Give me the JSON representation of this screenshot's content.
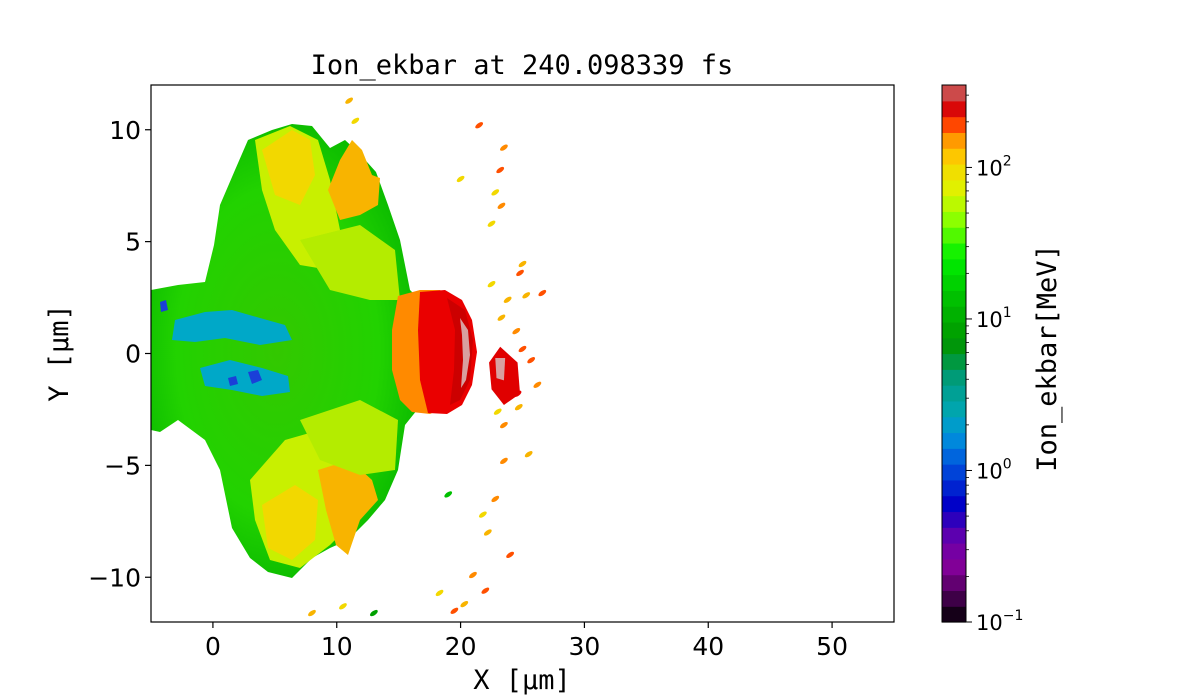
{
  "chart_data": {
    "type": "heatmap",
    "title": "Ion_ekbar at 240.098339 fs",
    "xlabel": "X  [μm]",
    "ylabel": "Y  [μm]",
    "xlim": [
      -5,
      55
    ],
    "ylim": [
      -12,
      12
    ],
    "x_ticks": [
      0,
      10,
      20,
      30,
      40,
      50
    ],
    "x_tick_labels": [
      "0",
      "10",
      "20",
      "30",
      "40",
      "50"
    ],
    "y_ticks": [
      10,
      5,
      0,
      -5,
      -10
    ],
    "y_tick_labels": [
      "10",
      "5",
      "0",
      "−5",
      "−10"
    ],
    "colorbar": {
      "label": "Ion_ekbar[MeV]",
      "scale": "log",
      "range": [
        0.1,
        350
      ],
      "ticks": [
        0.1,
        1,
        10,
        100
      ],
      "tick_labels": [
        {
          "base": "10",
          "exp": "−1"
        },
        {
          "base": "10",
          "exp": "0"
        },
        {
          "base": "10",
          "exp": "1"
        },
        {
          "base": "10",
          "exp": "2"
        }
      ],
      "levels": 34,
      "colormap": "nipy_spectral"
    },
    "field_regions": [
      {
        "x": [
          -5,
          27
        ],
        "y": [
          -11.5,
          11.5
        ],
        "value_MeV": 8,
        "note": "bulk plasma cloud"
      },
      {
        "x": [
          -5,
          6
        ],
        "y": [
          -2,
          2
        ],
        "value_MeV": 1.2,
        "note": "low energy core"
      },
      {
        "x": [
          6,
          16
        ],
        "y": [
          4,
          10
        ],
        "value_MeV": 35,
        "note": "upper lobe"
      },
      {
        "x": [
          6,
          16
        ],
        "y": [
          -10,
          -4
        ],
        "value_MeV": 35,
        "note": "lower lobe"
      },
      {
        "x": [
          17,
          22
        ],
        "y": [
          -2.7,
          2.7
        ],
        "value_MeV": 200,
        "note": "high energy shell"
      },
      {
        "x": [
          22,
          26
        ],
        "y": [
          -2,
          0.5
        ],
        "value_MeV": 150,
        "note": "fragments"
      }
    ]
  }
}
